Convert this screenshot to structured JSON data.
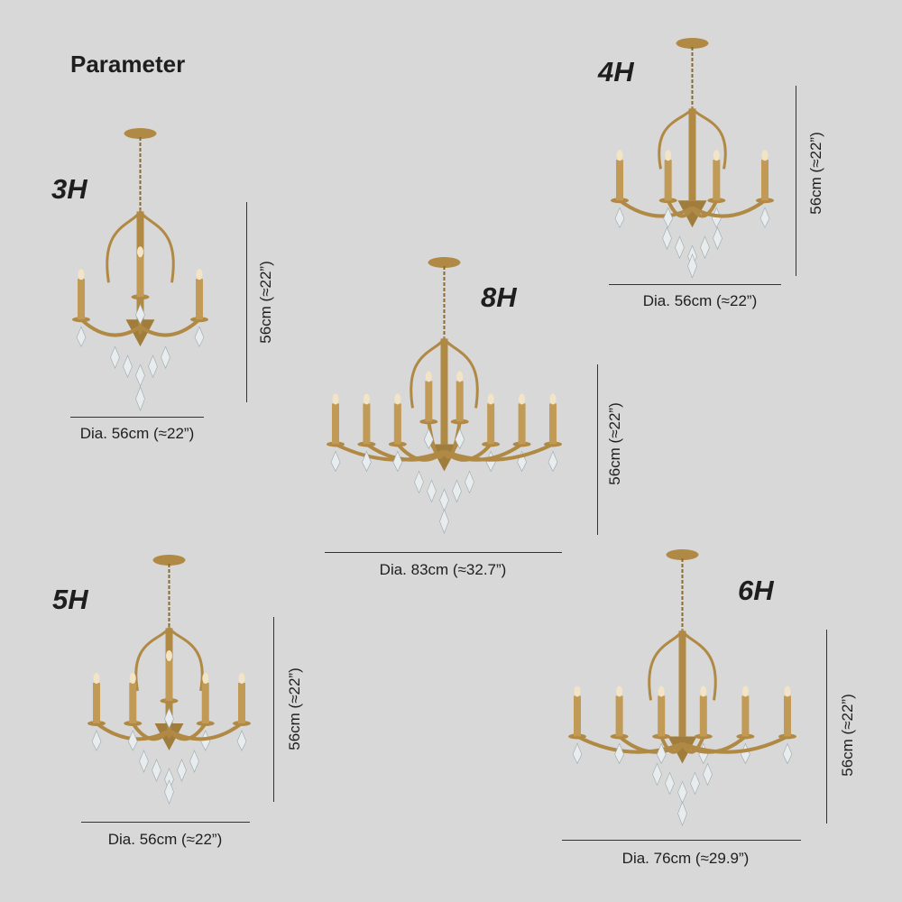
{
  "title": "Parameter",
  "accent_color": "#b08a45",
  "products": [
    {
      "model": "3H",
      "height": "56cm (≈22”)",
      "diameter": "Dia. 56cm (≈22”)",
      "candles": 3
    },
    {
      "model": "4H",
      "height": "56cm (≈22”)",
      "diameter": "Dia. 56cm (≈22”)",
      "candles": 4
    },
    {
      "model": "8H",
      "height": "56cm (≈22”)",
      "diameter": "Dia. 83cm (≈32.7”)",
      "candles": 8
    },
    {
      "model": "5H",
      "height": "56cm (≈22”)",
      "diameter": "Dia. 56cm (≈22”)",
      "candles": 5
    },
    {
      "model": "6H",
      "height": "56cm (≈22”)",
      "diameter": "Dia. 76cm (≈29.9”)",
      "candles": 6
    }
  ]
}
